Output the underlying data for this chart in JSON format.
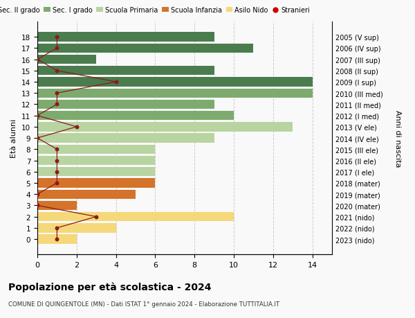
{
  "ages": [
    18,
    17,
    16,
    15,
    14,
    13,
    12,
    11,
    10,
    9,
    8,
    7,
    6,
    5,
    4,
    3,
    2,
    1,
    0
  ],
  "right_labels": [
    "2005 (V sup)",
    "2006 (IV sup)",
    "2007 (III sup)",
    "2008 (II sup)",
    "2009 (I sup)",
    "2010 (III med)",
    "2011 (II med)",
    "2012 (I med)",
    "2013 (V ele)",
    "2014 (IV ele)",
    "2015 (III ele)",
    "2016 (II ele)",
    "2017 (I ele)",
    "2018 (mater)",
    "2019 (mater)",
    "2020 (mater)",
    "2021 (nido)",
    "2022 (nido)",
    "2023 (nido)"
  ],
  "bar_values": [
    9,
    11,
    3,
    9,
    14,
    14,
    9,
    10,
    13,
    9,
    6,
    6,
    6,
    6,
    5,
    2,
    10,
    4,
    2
  ],
  "bar_colors": [
    "#4a7c4e",
    "#4a7c4e",
    "#4a7c4e",
    "#4a7c4e",
    "#4a7c4e",
    "#7dab6e",
    "#7dab6e",
    "#7dab6e",
    "#b8d4a0",
    "#b8d4a0",
    "#b8d4a0",
    "#b8d4a0",
    "#b8d4a0",
    "#d4732a",
    "#d4732a",
    "#d4732a",
    "#f5d87a",
    "#f5d87a",
    "#f5d87a"
  ],
  "stranieri_values": [
    1,
    1,
    0,
    1,
    4,
    1,
    1,
    0,
    2,
    0,
    1,
    1,
    1,
    1,
    0,
    0,
    3,
    1,
    1
  ],
  "stranieri_color": "#8b1a1a",
  "line_color": "#8b1a1a",
  "title": "Popolazione per età scolastica - 2024",
  "subtitle": "COMUNE DI QUINGENTOLE (MN) - Dati ISTAT 1° gennaio 2024 - Elaborazione TUTTITALIA.IT",
  "ylabel_left": "Età alunni",
  "ylabel_right": "Anni di nascita",
  "xlim": [
    0,
    15
  ],
  "xticks": [
    0,
    2,
    4,
    6,
    8,
    10,
    12,
    14
  ],
  "legend_labels": [
    "Sec. II grado",
    "Sec. I grado",
    "Scuola Primaria",
    "Scuola Infanzia",
    "Asilo Nido",
    "Stranieri"
  ],
  "legend_colors": [
    "#4a7c4e",
    "#7dab6e",
    "#b8d4a0",
    "#d4732a",
    "#f5d87a",
    "#cc0000"
  ],
  "background_color": "#f9f9f9",
  "grid_color": "#cccccc"
}
